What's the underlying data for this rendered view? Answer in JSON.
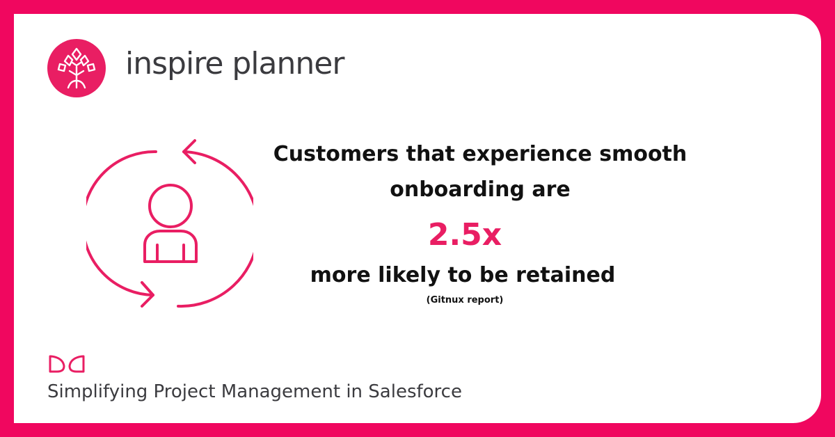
{
  "brand": {
    "name": "inspire planner",
    "logo_icon": "tree-logo-icon",
    "accent_color": "#e91e63",
    "frame_color": "#f0075f"
  },
  "stat": {
    "line1": "Customers that experience smooth",
    "line2": "onboarding are",
    "value": "2.5x",
    "line3": "more likely to be retained",
    "source": "(Gitnux report)",
    "icon": "user-cycle-icon"
  },
  "footer": {
    "leaf_icon": "leaf-icon",
    "tagline": "Simplifying Project Management in Salesforce"
  }
}
